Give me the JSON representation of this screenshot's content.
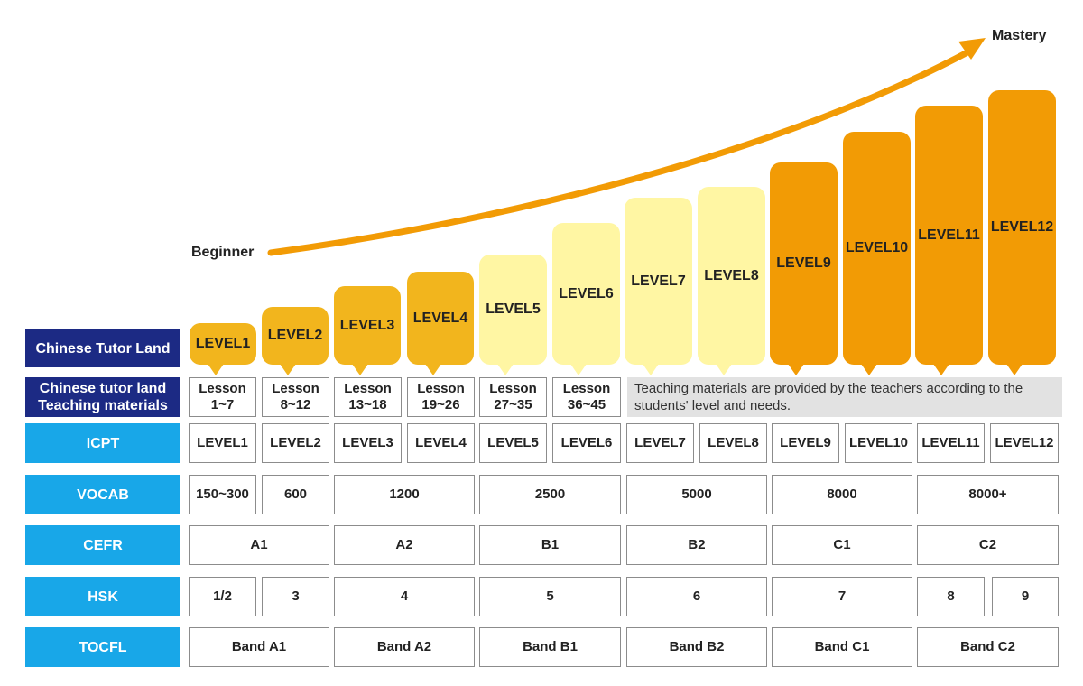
{
  "labels": {
    "beginner": "Beginner",
    "mastery": "Mastery"
  },
  "colors": {
    "yellow_dark": "#f2b51d",
    "yellow_light": "#fff6a3",
    "orange": "#f29b05",
    "navy": "#1c2a84",
    "blue": "#18a7e8"
  },
  "levels": [
    "LEVEL1",
    "LEVEL2",
    "LEVEL3",
    "LEVEL4",
    "LEVEL5",
    "LEVEL6",
    "LEVEL7",
    "LEVEL8",
    "LEVEL9",
    "LEVEL10",
    "LEVEL11",
    "LEVEL12"
  ],
  "rows": {
    "chinese_tutor_land": "Chinese Tutor Land",
    "teaching_materials_l1": "Chinese tutor land",
    "teaching_materials_l2": "Teaching materials",
    "icpt": "ICPT",
    "vocab": "VOCAB",
    "cefr": "CEFR",
    "hsk": "HSK",
    "tocfl": "TOCFL"
  },
  "lessons": [
    {
      "a": "Lesson",
      "b": "1~7"
    },
    {
      "a": "Lesson",
      "b": "8~12"
    },
    {
      "a": "Lesson",
      "b": "13~18"
    },
    {
      "a": "Lesson",
      "b": "19~26"
    },
    {
      "a": "Lesson",
      "b": "27~35"
    },
    {
      "a": "Lesson",
      "b": "36~45"
    }
  ],
  "teaching_note": "Teaching materials are provided by the teachers according to the students' level and needs.",
  "icpt": [
    "LEVEL1",
    "LEVEL2",
    "LEVEL3",
    "LEVEL4",
    "LEVEL5",
    "LEVEL6",
    "LEVEL7",
    "LEVEL8",
    "LEVEL9",
    "LEVEL10",
    "LEVEL11",
    "LEVEL12"
  ],
  "vocab": [
    "150~300",
    "600",
    "1200",
    "2500",
    "5000",
    "8000",
    "8000+"
  ],
  "cefr": [
    "A1",
    "A2",
    "B1",
    "B2",
    "C1",
    "C2"
  ],
  "hsk": [
    "1/2",
    "3",
    "4",
    "5",
    "6",
    "7",
    "8",
    "9"
  ],
  "tocfl": [
    "Band A1",
    "Band A2",
    "Band B1",
    "Band B2",
    "Band C1",
    "Band C2"
  ]
}
